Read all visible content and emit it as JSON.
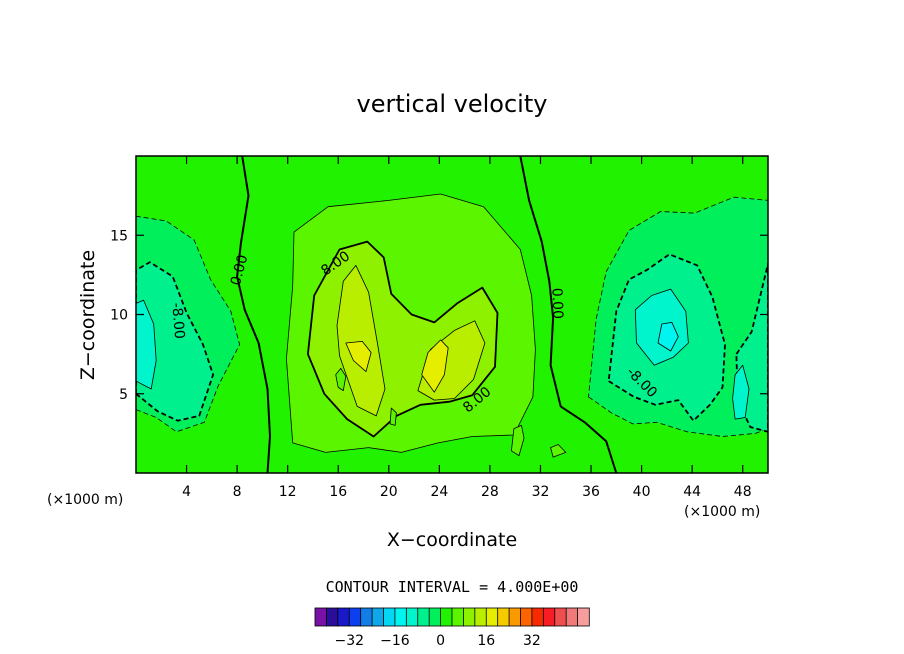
{
  "chart_data": {
    "type": "heatmap",
    "title": "vertical velocity",
    "xlabel": "X−coordinate",
    "ylabel": "Z−coordinate",
    "x_unit_label_left": "(×1000 m)",
    "x_unit_label_right": "(×1000 m)",
    "xlim": [
      0,
      50
    ],
    "ylim": [
      0,
      20
    ],
    "x_ticks": [
      4,
      8,
      12,
      16,
      20,
      24,
      28,
      32,
      36,
      40,
      44,
      48
    ],
    "y_ticks": [
      5,
      10,
      15
    ],
    "contour_interval_text": "CONTOUR INTERVAL = 4.000E+00",
    "contour_interval": 4,
    "contour_labels": [
      {
        "text": "0.00",
        "x": 8.2,
        "y": 12.8,
        "angle": -75
      },
      {
        "text": "8.00",
        "x": 15.8,
        "y": 13.2,
        "angle": -35
      },
      {
        "text": "8.00",
        "x": 27.0,
        "y": 4.6,
        "angle": -40
      },
      {
        "text": "0.00",
        "x": 33.3,
        "y": 10.7,
        "angle": 88
      },
      {
        "text": "-8.00",
        "x": 3.3,
        "y": 9.6,
        "angle": 85
      },
      {
        "text": "-8.00",
        "x": 40.0,
        "y": 5.7,
        "angle": 45
      }
    ],
    "background_level": 0,
    "regions": [
      {
        "level": -4,
        "dashed": true,
        "points": [
          [
            0,
            4
          ],
          [
            1.6,
            3.5
          ],
          [
            3.2,
            2.6
          ],
          [
            5.4,
            3.2
          ],
          [
            6.5,
            5.5
          ],
          [
            8.2,
            8.1
          ],
          [
            7.5,
            10.2
          ],
          [
            5.9,
            12.2
          ],
          [
            4.6,
            14.7
          ],
          [
            2.4,
            15.9
          ],
          [
            0,
            16.2
          ]
        ]
      },
      {
        "level": -8,
        "dashed": true,
        "points": [
          [
            0,
            5
          ],
          [
            1.7,
            3.9
          ],
          [
            3.3,
            3.3
          ],
          [
            5,
            3.6
          ],
          [
            6.1,
            6.2
          ],
          [
            5.3,
            8.1
          ],
          [
            4,
            10.1
          ],
          [
            2.9,
            12.4
          ],
          [
            1.1,
            13.3
          ],
          [
            0,
            12.8
          ]
        ]
      },
      {
        "level": -12,
        "dashed": false,
        "points": [
          [
            0,
            5.8
          ],
          [
            1.2,
            5.3
          ],
          [
            1.6,
            7.1
          ],
          [
            1.4,
            9.4
          ],
          [
            0.6,
            10.9
          ],
          [
            0,
            10.7
          ]
        ]
      },
      {
        "level": 4,
        "dashed": false,
        "points": [
          [
            12.4,
            1.9
          ],
          [
            15,
            1.3
          ],
          [
            18.4,
            1.6
          ],
          [
            21,
            1.3
          ],
          [
            23.9,
            1.9
          ],
          [
            26.6,
            2.3
          ],
          [
            29.9,
            2.4
          ],
          [
            31.4,
            4.8
          ],
          [
            31.6,
            7.8
          ],
          [
            31.3,
            11.2
          ],
          [
            30.4,
            14.1
          ],
          [
            27.5,
            16.8
          ],
          [
            24.1,
            17.6
          ],
          [
            20,
            17.2
          ],
          [
            15.2,
            16.8
          ],
          [
            12.5,
            15.2
          ],
          [
            12.4,
            11.8
          ],
          [
            11.9,
            7.2
          ]
        ]
      },
      {
        "level": 8,
        "dashed": false,
        "points": [
          [
            13.6,
            7.5
          ],
          [
            14.9,
            5
          ],
          [
            16.7,
            3.4
          ],
          [
            18.8,
            2.3
          ],
          [
            20.6,
            3.6
          ],
          [
            22.5,
            4.3
          ],
          [
            24.8,
            4.5
          ],
          [
            26.6,
            4.9
          ],
          [
            28.4,
            6.7
          ],
          [
            28.6,
            10.1
          ],
          [
            27.4,
            11.7
          ],
          [
            25.4,
            10.7
          ],
          [
            23.6,
            9.5
          ],
          [
            21.8,
            10
          ],
          [
            20.2,
            11.3
          ],
          [
            19.6,
            13.6
          ],
          [
            18.3,
            14.6
          ],
          [
            16.1,
            14.1
          ],
          [
            14.1,
            11.2
          ]
        ]
      },
      {
        "level": 12,
        "dashed": false,
        "points": [
          [
            16.1,
            7.4
          ],
          [
            17.5,
            4.2
          ],
          [
            19,
            3.6
          ],
          [
            19.7,
            5.3
          ],
          [
            19.1,
            8.2
          ],
          [
            18.4,
            11.4
          ],
          [
            17.4,
            13.1
          ],
          [
            16.4,
            12.1
          ],
          [
            15.9,
            9.3
          ]
        ]
      },
      {
        "level": 12,
        "dashed": false,
        "points": [
          [
            22.3,
            5.2
          ],
          [
            23.6,
            4.6
          ],
          [
            25.2,
            4.7
          ],
          [
            26.7,
            5.9
          ],
          [
            27.6,
            8.2
          ],
          [
            26.8,
            9.6
          ],
          [
            25.2,
            9
          ],
          [
            23.3,
            7.8
          ]
        ]
      },
      {
        "level": 16,
        "dashed": false,
        "points": [
          [
            22.6,
            6.2
          ],
          [
            23.6,
            5.1
          ],
          [
            24.4,
            6.2
          ],
          [
            24.7,
            7.9
          ],
          [
            24.1,
            8.4
          ],
          [
            23.1,
            7.6
          ]
        ]
      },
      {
        "level": 16,
        "dashed": false,
        "points": [
          [
            16.6,
            8.2
          ],
          [
            17.2,
            7.1
          ],
          [
            18.2,
            6.4
          ],
          [
            18.6,
            7.6
          ],
          [
            17.9,
            8.3
          ]
        ]
      },
      {
        "level": 4,
        "dashed": false,
        "points": [
          [
            16,
            5.4
          ],
          [
            16.4,
            5.2
          ],
          [
            16.6,
            6.1
          ],
          [
            16.2,
            6.6
          ],
          [
            15.8,
            6.2
          ]
        ]
      },
      {
        "level": 4,
        "dashed": false,
        "points": [
          [
            20.1,
            3.1
          ],
          [
            20.5,
            3
          ],
          [
            20.6,
            3.8
          ],
          [
            20.2,
            4.1
          ]
        ]
      },
      {
        "level": -4,
        "dashed": true,
        "points": [
          [
            35.8,
            4.8
          ],
          [
            37.6,
            3.8
          ],
          [
            39.3,
            3.1
          ],
          [
            41.2,
            3.2
          ],
          [
            43.6,
            2.6
          ],
          [
            46.4,
            2.3
          ],
          [
            49,
            2.5
          ],
          [
            50,
            2.8
          ],
          [
            50,
            17.2
          ],
          [
            47.3,
            17.4
          ],
          [
            44.2,
            16.4
          ],
          [
            41.5,
            16.5
          ],
          [
            39,
            15.3
          ],
          [
            37.2,
            12.7
          ],
          [
            36.4,
            9.7
          ]
        ]
      },
      {
        "level": -8,
        "dashed": true,
        "points": [
          [
            37.4,
            5.8
          ],
          [
            39.4,
            4.8
          ],
          [
            41.1,
            4.3
          ],
          [
            42.9,
            4.6
          ],
          [
            44.1,
            3.3
          ],
          [
            45.4,
            4.3
          ],
          [
            46.4,
            5.4
          ],
          [
            46.6,
            8.1
          ],
          [
            45.6,
            11.1
          ],
          [
            44.4,
            13.1
          ],
          [
            42.2,
            13.8
          ],
          [
            40.4,
            12.8
          ],
          [
            39,
            12.2
          ],
          [
            38,
            10.2
          ]
        ]
      },
      {
        "level": -12,
        "dashed": false,
        "points": [
          [
            39.6,
            8.2
          ],
          [
            41,
            6.8
          ],
          [
            42.5,
            7.3
          ],
          [
            43.7,
            8.2
          ],
          [
            43.5,
            10.2
          ],
          [
            42.3,
            11.6
          ],
          [
            40.8,
            11.2
          ],
          [
            39.5,
            10.3
          ]
        ]
      },
      {
        "level": -16,
        "dashed": false,
        "points": [
          [
            41.3,
            8.2
          ],
          [
            42.3,
            7.7
          ],
          [
            42.9,
            8.6
          ],
          [
            42.4,
            9.5
          ],
          [
            41.6,
            9.4
          ]
        ]
      },
      {
        "level": -8,
        "dashed": true,
        "points": [
          [
            47.5,
            7.5
          ],
          [
            48.7,
            8.9
          ],
          [
            50,
            13.2
          ],
          [
            50,
            2.6
          ],
          [
            48.6,
            2.9
          ],
          [
            47.6,
            4.6
          ]
        ]
      },
      {
        "level": -12,
        "dashed": false,
        "points": [
          [
            47.4,
            3.4
          ],
          [
            48.2,
            3.5
          ],
          [
            48.5,
            5.3
          ],
          [
            48,
            6.8
          ],
          [
            47.4,
            6.2
          ],
          [
            47.2,
            4.7
          ]
        ]
      },
      {
        "level": 4,
        "dashed": false,
        "points": [
          [
            29.7,
            1.4
          ],
          [
            30.3,
            1.1
          ],
          [
            30.7,
            2.2
          ],
          [
            30.5,
            3
          ],
          [
            29.9,
            2.8
          ]
        ]
      },
      {
        "level": 4,
        "dashed": false,
        "points": [
          [
            33,
            1
          ],
          [
            34,
            1.3
          ],
          [
            33.4,
            1.8
          ],
          [
            32.8,
            1.6
          ]
        ]
      }
    ],
    "zero_contours": [
      [
        [
          8.4,
          20
        ],
        [
          8.9,
          17.5
        ],
        [
          8.3,
          14.5
        ],
        [
          8,
          12.4
        ],
        [
          8.6,
          10.3
        ],
        [
          9.7,
          8.2
        ],
        [
          10.4,
          5.3
        ],
        [
          10.6,
          2.3
        ],
        [
          10.4,
          0
        ]
      ],
      [
        [
          30.4,
          20
        ],
        [
          31.1,
          17.2
        ],
        [
          32.1,
          14.6
        ],
        [
          32.7,
          12.1
        ],
        [
          33,
          9.8
        ],
        [
          32.8,
          6.8
        ],
        [
          33.6,
          4.2
        ],
        [
          35.5,
          3.2
        ],
        [
          37.2,
          2
        ],
        [
          38,
          0
        ]
      ]
    ],
    "colorbar": {
      "colors": [
        "#7a11a6",
        "#2b0d9c",
        "#1a19c8",
        "#0c40ee",
        "#127de6",
        "#10a7e8",
        "#05d6f3",
        "#00f5f0",
        "#00f5cc",
        "#00f08e",
        "#00ef5a",
        "#21f200",
        "#5cf500",
        "#8df100",
        "#b9ee00",
        "#e6ee00",
        "#f5cb00",
        "#f89a00",
        "#fb6400",
        "#f72b00",
        "#f81c24",
        "#ee4e4e",
        "#f07a7a",
        "#f79d9d"
      ],
      "tick_values": [
        -32,
        -16,
        0,
        16,
        32
      ],
      "tick_labels": [
        "−32",
        "−16",
        "0",
        "16",
        "32"
      ],
      "first_boundary": -44,
      "step": 4
    }
  }
}
